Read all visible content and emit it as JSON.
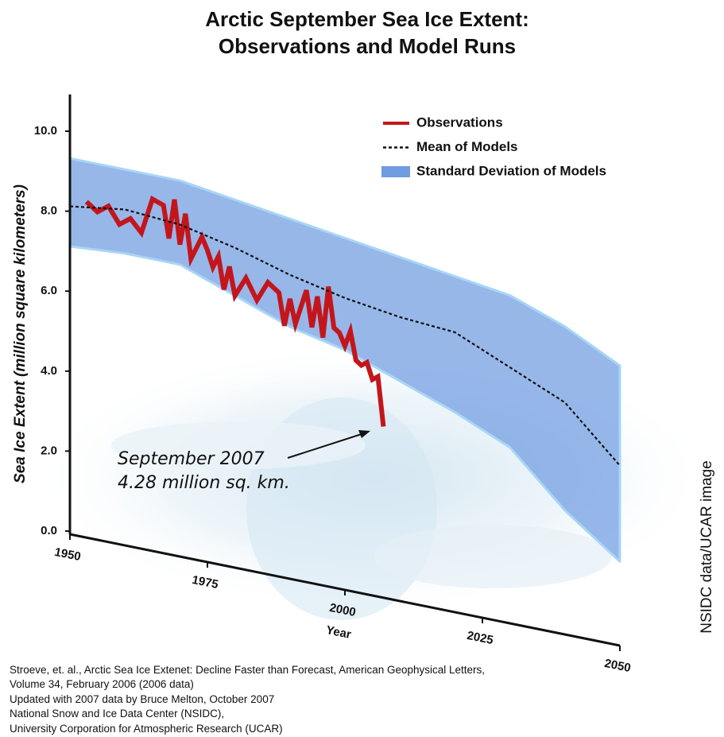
{
  "chart_data": {
    "type": "line",
    "title": [
      "Arctic September Sea Ice Extent:",
      "Observations and Model Runs"
    ],
    "x_label": "Year",
    "y_label": "Sea Ice Extent (million square kilometers)",
    "xlim": [
      1950,
      2050
    ],
    "xticks": [
      1950,
      1975,
      2000,
      2025,
      2050
    ],
    "ylim": [
      0,
      11
    ],
    "yticks": [
      {
        "value": 0,
        "label": "0.0"
      },
      {
        "value": 2,
        "label": "2.0"
      },
      {
        "value": 4,
        "label": "4.0"
      },
      {
        "value": 6,
        "label": "6.0"
      },
      {
        "value": 8,
        "label": "8.0"
      },
      {
        "value": 10,
        "label": "10.0"
      }
    ],
    "grid": false,
    "legend": "upper right",
    "series": [
      {
        "name": "Observations",
        "color": "#c3161c",
        "style": "solid",
        "x": [
          1953,
          1955,
          1957,
          1959,
          1961,
          1963,
          1965,
          1967,
          1968,
          1969,
          1970,
          1971,
          1972,
          1974,
          1975,
          1976,
          1977,
          1978,
          1979,
          1980,
          1982,
          1984,
          1986,
          1988,
          1989,
          1990,
          1991,
          1993,
          1994,
          1995,
          1996,
          1997,
          1998,
          1999,
          2000,
          2001,
          2002,
          2003,
          2004,
          2005,
          2006,
          2007
        ],
        "values": [
          8.4,
          8.2,
          8.4,
          8.0,
          8.2,
          7.9,
          8.8,
          8.7,
          7.9,
          8.9,
          7.8,
          8.6,
          7.5,
          8.1,
          7.8,
          7.4,
          7.7,
          6.9,
          7.5,
          6.8,
          7.3,
          6.8,
          7.3,
          7.1,
          6.3,
          7.0,
          6.4,
          7.3,
          6.4,
          7.2,
          6.2,
          7.5,
          6.5,
          6.4,
          6.1,
          6.5,
          5.8,
          5.7,
          5.8,
          5.4,
          5.5,
          4.28
        ]
      },
      {
        "name": "Mean of Models",
        "color": "#111111",
        "style": "dashed",
        "x": [
          1950,
          1960,
          1970,
          1980,
          1990,
          2000,
          2010,
          2020,
          2030,
          2040,
          2050
        ],
        "values": [
          8.2,
          8.4,
          8.3,
          8.0,
          7.6,
          7.3,
          7.1,
          7.0,
          6.4,
          5.8,
          4.5
        ]
      },
      {
        "name": "Standard Deviation of Models",
        "color": "#6f9be0",
        "style": "band",
        "x": [
          1950,
          1960,
          1970,
          1980,
          1990,
          2000,
          2010,
          2020,
          2030,
          2040,
          2050
        ],
        "upper": [
          9.4,
          9.4,
          9.4,
          9.2,
          9.0,
          8.8,
          8.6,
          8.4,
          8.2,
          7.7,
          7.0
        ],
        "lower": [
          7.2,
          7.3,
          7.3,
          6.8,
          6.3,
          6.0,
          5.5,
          5.0,
          4.4,
          3.1,
          2.1
        ]
      }
    ],
    "annotation": [
      "September 2007",
      "4.28 million sq. km."
    ],
    "source": [
      "Stroeve, et. al., Arctic Sea Ice Extenet: Decline Faster than Forecast, American Geophysical Letters,",
      "Volume 34, February 2006 (2006 data)",
      "Updated with 2007 data by Bruce Melton, October 2007",
      "National Snow and Ice Data Center (NSIDC),",
      "University Corporation for Atmospheric Research (UCAR)"
    ],
    "credit": "NSIDC data/UCAR image"
  }
}
